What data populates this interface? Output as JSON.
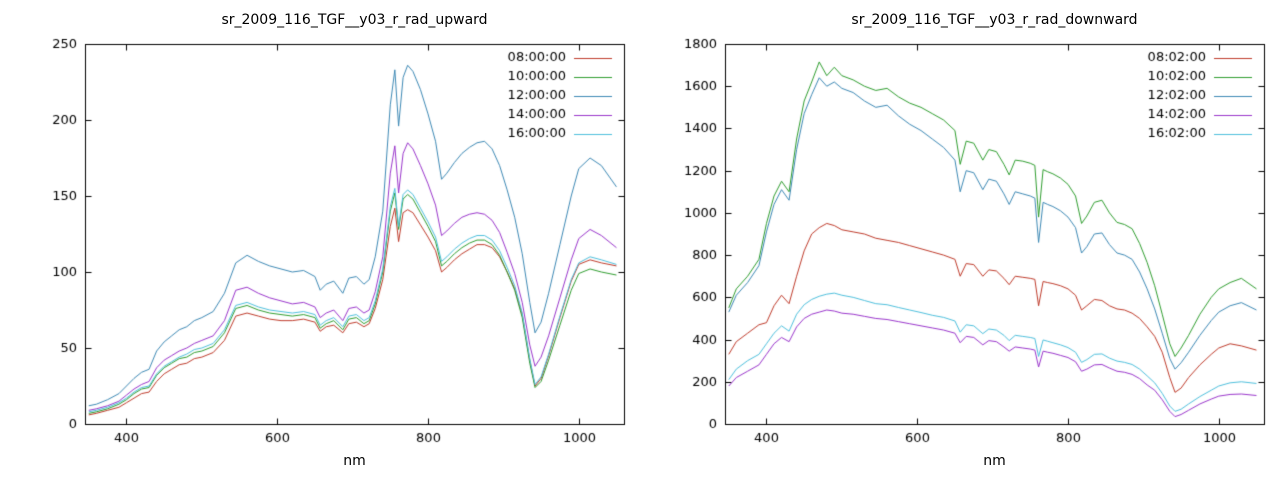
{
  "page": {
    "background": "#ffffff",
    "axis_color": "#000000"
  },
  "chart_data": [
    {
      "type": "line",
      "title": "sr_2009_116_TGF__y03_r_rad_upward",
      "xlabel": "nm",
      "ylabel": "",
      "xlim": [
        345,
        1060
      ],
      "ylim": [
        0,
        250
      ],
      "ytick_step": 50,
      "xticks": [
        400,
        600,
        800,
        1000
      ],
      "legend_position": "top-right",
      "grid": false,
      "x": [
        350,
        360,
        375,
        390,
        400,
        410,
        420,
        430,
        440,
        450,
        460,
        470,
        480,
        490,
        500,
        515,
        530,
        545,
        560,
        575,
        590,
        605,
        620,
        635,
        650,
        657,
        665,
        675,
        687,
        695,
        705,
        715,
        722,
        730,
        740,
        750,
        756,
        761,
        767,
        773,
        780,
        790,
        800,
        810,
        818,
        825,
        835,
        845,
        855,
        865,
        875,
        885,
        895,
        905,
        915,
        925,
        935,
        942,
        950,
        960,
        975,
        990,
        1000,
        1015,
        1030,
        1050
      ],
      "series": [
        {
          "name": "08:00:00",
          "color": "#bf3b2b",
          "values": [
            6,
            7,
            9,
            11,
            14,
            17,
            20,
            21,
            28,
            33,
            36,
            39,
            40,
            43,
            44,
            47,
            55,
            71,
            73,
            71,
            69,
            68,
            68,
            69,
            67,
            61,
            64,
            65,
            60,
            66,
            67,
            64,
            66,
            76,
            95,
            130,
            142,
            120,
            139,
            141,
            139,
            131,
            123,
            114,
            100,
            103,
            108,
            112,
            115,
            118,
            118,
            116,
            110,
            100,
            89,
            72,
            42,
            25,
            30,
            45,
            70,
            94,
            105,
            108,
            106,
            104
          ]
        },
        {
          "name": "10:00:00",
          "color": "#2f9e2f",
          "values": [
            7,
            8,
            10,
            13,
            16,
            20,
            23,
            24,
            32,
            37,
            40,
            43,
            44,
            47,
            48,
            51,
            60,
            76,
            78,
            75,
            73,
            72,
            71,
            72,
            70,
            63,
            66,
            68,
            62,
            69,
            70,
            66,
            68,
            79,
            100,
            140,
            152,
            128,
            148,
            151,
            148,
            139,
            130,
            120,
            104,
            107,
            112,
            116,
            119,
            121,
            121,
            118,
            111,
            100,
            88,
            70,
            40,
            24,
            28,
            42,
            65,
            88,
            99,
            102,
            100,
            98
          ]
        },
        {
          "name": "12:00:00",
          "color": "#3d89b5",
          "values": [
            12,
            13,
            16,
            20,
            25,
            30,
            34,
            36,
            48,
            54,
            58,
            62,
            64,
            68,
            70,
            74,
            86,
            106,
            111,
            107,
            104,
            102,
            100,
            101,
            97,
            88,
            92,
            94,
            86,
            96,
            97,
            92,
            95,
            110,
            140,
            210,
            233,
            196,
            228,
            236,
            232,
            220,
            204,
            186,
            161,
            165,
            172,
            178,
            182,
            185,
            186,
            181,
            170,
            154,
            136,
            112,
            80,
            60,
            67,
            86,
            118,
            150,
            168,
            175,
            170,
            156
          ]
        },
        {
          "name": "14:00:00",
          "color": "#9a35cc",
          "values": [
            9,
            10,
            12,
            15,
            19,
            23,
            26,
            28,
            37,
            42,
            45,
            48,
            50,
            53,
            55,
            58,
            68,
            88,
            90,
            86,
            83,
            81,
            79,
            80,
            77,
            70,
            73,
            75,
            68,
            76,
            77,
            73,
            75,
            87,
            110,
            165,
            183,
            152,
            178,
            185,
            181,
            170,
            158,
            144,
            124,
            127,
            132,
            136,
            138,
            139,
            138,
            134,
            126,
            113,
            99,
            80,
            52,
            38,
            44,
            58,
            83,
            108,
            122,
            128,
            124,
            116
          ]
        },
        {
          "name": "16:00:00",
          "color": "#4ec0dd",
          "values": [
            8,
            9,
            11,
            14,
            17,
            21,
            24,
            25,
            33,
            38,
            41,
            44,
            46,
            49,
            50,
            53,
            62,
            78,
            80,
            77,
            75,
            74,
            73,
            74,
            72,
            65,
            68,
            70,
            64,
            71,
            72,
            68,
            70,
            81,
            102,
            143,
            155,
            130,
            151,
            154,
            151,
            142,
            133,
            123,
            107,
            110,
            115,
            119,
            122,
            124,
            124,
            121,
            114,
            103,
            91,
            73,
            43,
            26,
            31,
            46,
            71,
            95,
            106,
            110,
            108,
            105
          ]
        }
      ]
    },
    {
      "type": "line",
      "title": "sr_2009_116_TGF__y03_r_rad_downward",
      "xlabel": "nm",
      "ylabel": "",
      "xlim": [
        345,
        1060
      ],
      "ylim": [
        0,
        1800
      ],
      "ytick_step": 200,
      "xticks": [
        400,
        600,
        800,
        1000
      ],
      "legend_position": "top-right",
      "grid": false,
      "x": [
        350,
        360,
        375,
        390,
        400,
        410,
        420,
        430,
        440,
        450,
        460,
        470,
        480,
        490,
        500,
        515,
        530,
        545,
        560,
        575,
        590,
        605,
        620,
        635,
        650,
        657,
        665,
        675,
        687,
        695,
        705,
        715,
        722,
        730,
        740,
        750,
        756,
        761,
        767,
        773,
        780,
        790,
        800,
        810,
        818,
        825,
        835,
        845,
        855,
        865,
        875,
        885,
        895,
        905,
        915,
        925,
        935,
        942,
        950,
        960,
        975,
        990,
        1000,
        1015,
        1030,
        1050
      ],
      "series": [
        {
          "name": "08:02:00",
          "color": "#bf3b2b",
          "values": [
            330,
            390,
            430,
            470,
            480,
            560,
            610,
            570,
            700,
            820,
            900,
            930,
            950,
            940,
            920,
            910,
            900,
            880,
            870,
            860,
            845,
            830,
            815,
            800,
            780,
            700,
            760,
            755,
            700,
            730,
            725,
            690,
            660,
            700,
            695,
            690,
            685,
            560,
            675,
            670,
            665,
            655,
            640,
            610,
            540,
            560,
            590,
            585,
            560,
            545,
            540,
            525,
            500,
            460,
            415,
            340,
            220,
            150,
            170,
            220,
            280,
            330,
            360,
            380,
            370,
            350
          ]
        },
        {
          "name": "10:02:00",
          "color": "#2f9e2f",
          "values": [
            550,
            640,
            700,
            780,
            950,
            1080,
            1150,
            1100,
            1350,
            1530,
            1620,
            1715,
            1650,
            1690,
            1650,
            1630,
            1600,
            1580,
            1590,
            1550,
            1520,
            1500,
            1470,
            1440,
            1390,
            1230,
            1340,
            1330,
            1250,
            1300,
            1290,
            1230,
            1180,
            1250,
            1245,
            1235,
            1225,
            980,
            1205,
            1195,
            1185,
            1165,
            1135,
            1080,
            950,
            985,
            1050,
            1060,
            1000,
            955,
            945,
            925,
            855,
            765,
            655,
            520,
            380,
            320,
            360,
            420,
            520,
            600,
            640,
            670,
            690,
            640
          ]
        },
        {
          "name": "12:02:00",
          "color": "#3d89b5",
          "values": [
            530,
            610,
            670,
            750,
            910,
            1040,
            1110,
            1060,
            1300,
            1470,
            1560,
            1640,
            1600,
            1620,
            1590,
            1570,
            1530,
            1500,
            1510,
            1460,
            1420,
            1390,
            1350,
            1310,
            1250,
            1100,
            1200,
            1190,
            1110,
            1160,
            1150,
            1090,
            1040,
            1100,
            1090,
            1080,
            1070,
            860,
            1050,
            1040,
            1030,
            1010,
            980,
            930,
            810,
            840,
            900,
            905,
            850,
            810,
            800,
            780,
            720,
            640,
            545,
            430,
            310,
            260,
            290,
            340,
            420,
            490,
            530,
            560,
            575,
            540
          ]
        },
        {
          "name": "14:02:00",
          "color": "#9a35cc",
          "values": [
            180,
            220,
            250,
            280,
            330,
            380,
            410,
            390,
            460,
            500,
            520,
            530,
            540,
            535,
            525,
            520,
            510,
            500,
            495,
            485,
            475,
            465,
            455,
            445,
            430,
            385,
            415,
            410,
            375,
            395,
            390,
            365,
            345,
            365,
            360,
            355,
            350,
            270,
            345,
            340,
            335,
            325,
            315,
            295,
            250,
            260,
            280,
            282,
            265,
            250,
            245,
            235,
            215,
            185,
            160,
            115,
            60,
            35,
            45,
            65,
            95,
            118,
            132,
            140,
            142,
            135
          ]
        },
        {
          "name": "16:02:00",
          "color": "#4ec0dd",
          "values": [
            210,
            260,
            300,
            330,
            380,
            430,
            465,
            440,
            520,
            565,
            590,
            605,
            615,
            620,
            610,
            600,
            585,
            570,
            565,
            552,
            540,
            528,
            515,
            505,
            488,
            435,
            470,
            465,
            428,
            450,
            445,
            420,
            395,
            420,
            415,
            410,
            405,
            320,
            398,
            392,
            385,
            375,
            362,
            340,
            292,
            305,
            330,
            332,
            312,
            298,
            292,
            282,
            260,
            228,
            195,
            145,
            85,
            60,
            70,
            95,
            130,
            160,
            180,
            195,
            200,
            192
          ]
        }
      ]
    }
  ]
}
